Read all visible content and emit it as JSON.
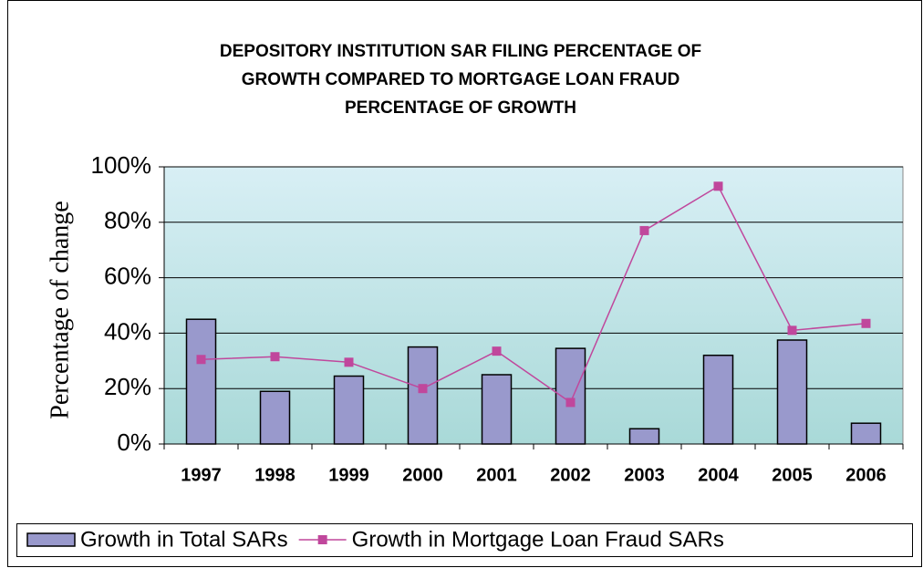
{
  "chart_data": {
    "type": "bar-line",
    "title": [
      "DEPOSITORY INSTITUTION SAR FILING PERCENTAGE OF",
      "GROWTH COMPARED TO MORTGAGE LOAN FRAUD",
      "PERCENTAGE OF GROWTH"
    ],
    "y_label": "Percentage of change",
    "categories": [
      "1997",
      "1998",
      "1999",
      "2000",
      "2001",
      "2002",
      "2003",
      "2004",
      "2005",
      "2006"
    ],
    "series": [
      {
        "name": "Growth in Total SARs",
        "type": "bar",
        "color": "#9999cc",
        "values": [
          45,
          19,
          24.5,
          35,
          25,
          34.5,
          5.5,
          32,
          37.5,
          7.5
        ]
      },
      {
        "name": "Growth in Mortgage Loan Fraud SARs",
        "type": "line",
        "color": "#c0479c",
        "values": [
          30.5,
          31.5,
          29.5,
          20,
          33.5,
          15,
          77,
          93,
          41,
          43.5
        ]
      }
    ],
    "ylim": [
      0,
      100
    ],
    "yticks": [
      {
        "value": 0,
        "label": "0%"
      },
      {
        "value": 20,
        "label": "20%"
      },
      {
        "value": 40,
        "label": "40%"
      },
      {
        "value": 60,
        "label": "60%"
      },
      {
        "value": 80,
        "label": "80%"
      },
      {
        "value": 100,
        "label": "100%"
      }
    ],
    "grid": true,
    "legend": "bottom"
  }
}
